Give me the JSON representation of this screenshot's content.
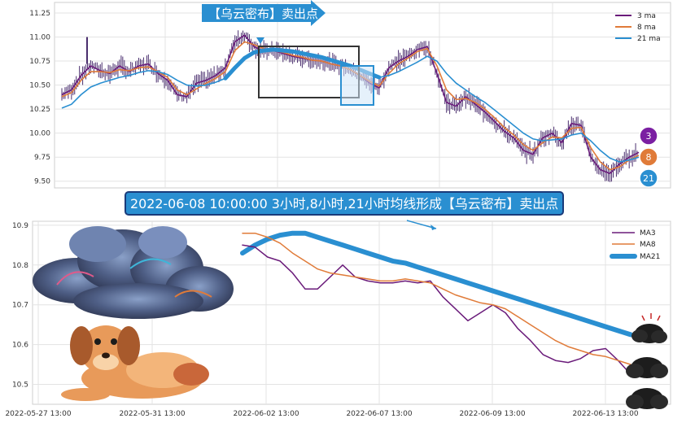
{
  "annotations": {
    "banner": "【乌云密布】卖出点",
    "note": "2022-06-08 10:00:00 3小时,8小时,21小时均线形成【乌云密布】卖出点",
    "badges": [
      "3",
      "8",
      "21"
    ]
  },
  "colors": {
    "ma3": "#6a1b7a",
    "ma8": "#e07b39",
    "ma21": "#2a8fd1",
    "candle": "#4a2e6e",
    "banner": "#2a8fd1",
    "note_bg": "#2a8fd1",
    "badge3": "#7b1fa2",
    "badge8": "#e07b39",
    "badge21": "#2a8fd1"
  },
  "chart_data": [
    {
      "type": "line",
      "title": "",
      "legend": {
        "placement": "top-right",
        "entries": [
          "3 ma",
          "8 ma",
          "21 ma"
        ]
      },
      "ylim": [
        9.43,
        11.36
      ],
      "yticks": [
        "11.25",
        "11.00",
        "10.75",
        "10.50",
        "10.25",
        "10.00",
        "9.75",
        "9.50"
      ],
      "grid": true,
      "x_start": "2022-05-27 13:00",
      "x_end": "2022-06-14 13:00",
      "series": [
        {
          "name": "3 ma",
          "values": [
            10.4,
            10.45,
            10.6,
            10.7,
            10.65,
            10.62,
            10.7,
            10.64,
            10.7,
            10.72,
            10.62,
            10.55,
            10.4,
            10.38,
            10.52,
            10.55,
            10.6,
            10.68,
            10.95,
            11.02,
            10.9,
            10.85,
            10.86,
            10.83,
            10.8,
            10.78,
            10.76,
            10.75,
            10.72,
            10.7,
            10.66,
            10.6,
            10.52,
            10.47,
            10.68,
            10.75,
            10.8,
            10.87,
            10.9,
            10.62,
            10.32,
            10.28,
            10.38,
            10.3,
            10.22,
            10.12,
            10.02,
            9.95,
            9.82,
            9.78,
            9.95,
            10.0,
            9.9,
            10.1,
            10.08,
            9.75,
            9.62,
            9.58,
            9.68,
            9.75,
            9.8
          ]
        },
        {
          "name": "8 ma",
          "values": [
            10.38,
            10.42,
            10.55,
            10.64,
            10.64,
            10.63,
            10.66,
            10.65,
            10.68,
            10.69,
            10.64,
            10.58,
            10.45,
            10.4,
            10.46,
            10.52,
            10.57,
            10.64,
            10.86,
            10.95,
            10.92,
            10.88,
            10.86,
            10.84,
            10.81,
            10.79,
            10.76,
            10.75,
            10.72,
            10.7,
            10.66,
            10.6,
            10.54,
            10.49,
            10.62,
            10.72,
            10.78,
            10.85,
            10.88,
            10.7,
            10.45,
            10.35,
            10.36,
            10.32,
            10.25,
            10.16,
            10.06,
            9.98,
            9.88,
            9.82,
            9.9,
            9.96,
            9.95,
            10.05,
            10.06,
            9.85,
            9.7,
            9.62,
            9.65,
            9.72,
            9.77
          ]
        },
        {
          "name": "21 ma",
          "values": [
            10.26,
            10.3,
            10.4,
            10.48,
            10.52,
            10.55,
            10.58,
            10.6,
            10.63,
            10.65,
            10.64,
            10.61,
            10.55,
            10.5,
            10.49,
            10.5,
            10.53,
            10.57,
            10.68,
            10.78,
            10.84,
            10.86,
            10.87,
            10.86,
            10.85,
            10.83,
            10.81,
            10.79,
            10.76,
            10.73,
            10.7,
            10.66,
            10.62,
            10.58,
            10.6,
            10.64,
            10.69,
            10.74,
            10.8,
            10.75,
            10.62,
            10.52,
            10.45,
            10.38,
            10.32,
            10.24,
            10.16,
            10.08,
            10.0,
            9.94,
            9.92,
            9.93,
            9.94,
            9.98,
            10.0,
            9.92,
            9.82,
            9.74,
            9.7,
            9.72,
            9.75
          ]
        }
      ]
    },
    {
      "type": "line",
      "title": "",
      "legend": {
        "placement": "top-right",
        "entries": [
          "MA3",
          "MA8",
          "MA21"
        ]
      },
      "ylim": [
        10.45,
        10.91
      ],
      "yticks": [
        "10.9",
        "10.8",
        "10.7",
        "10.6",
        "10.5"
      ],
      "xticks": [
        "2022-05-27 13:00",
        "2022-05-31 13:00",
        "2022-06-02 13:00",
        "2022-06-07 13:00",
        "2022-06-09 13:00",
        "2022-06-13 13:00"
      ],
      "grid": true,
      "series": [
        {
          "name": "MA3",
          "x_start_index": 2,
          "values": [
            10.85,
            10.845,
            10.82,
            10.81,
            10.78,
            10.74,
            10.74,
            10.77,
            10.8,
            10.77,
            10.76,
            10.755,
            10.755,
            10.76,
            10.755,
            10.76,
            10.72,
            10.69,
            10.66,
            10.68,
            10.7,
            10.68,
            10.64,
            10.61,
            10.575,
            10.56,
            10.555,
            10.565,
            10.585,
            10.59,
            10.56,
            10.525
          ]
        },
        {
          "name": "MA8",
          "x_start_index": 2,
          "values": [
            10.88,
            10.88,
            10.87,
            10.855,
            10.83,
            10.81,
            10.79,
            10.78,
            10.775,
            10.77,
            10.765,
            10.76,
            10.76,
            10.765,
            10.76,
            10.755,
            10.74,
            10.725,
            10.715,
            10.705,
            10.7,
            10.69,
            10.67,
            10.65,
            10.63,
            10.61,
            10.595,
            10.585,
            10.575,
            10.57,
            10.56,
            10.55
          ]
        },
        {
          "name": "MA21",
          "x_start_index": 2,
          "values": [
            10.83,
            10.85,
            10.865,
            10.875,
            10.88,
            10.88,
            10.87,
            10.86,
            10.85,
            10.84,
            10.83,
            10.82,
            10.81,
            10.805,
            10.795,
            10.785,
            10.775,
            10.765,
            10.755,
            10.745,
            10.735,
            10.725,
            10.715,
            10.705,
            10.695,
            10.685,
            10.675,
            10.665,
            10.655,
            10.645,
            10.635,
            10.625
          ]
        }
      ]
    }
  ]
}
